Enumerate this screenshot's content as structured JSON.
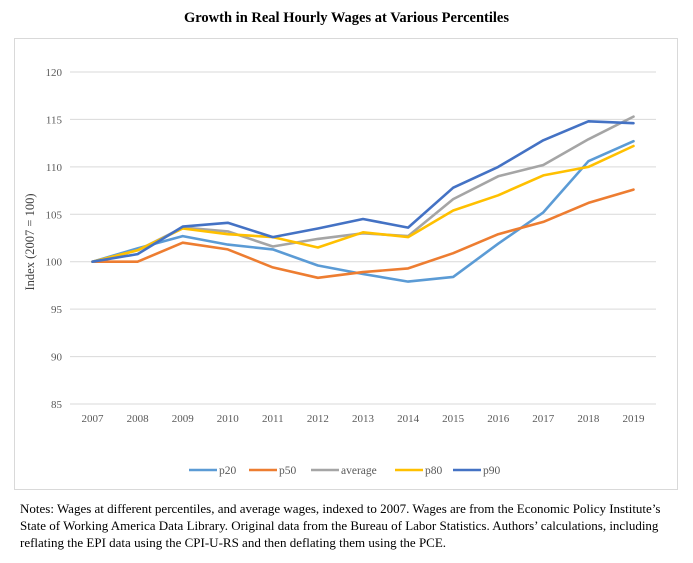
{
  "title": "Growth in Real Hourly Wages at Various Percentiles",
  "notes": "Notes: Wages at different percentiles, and average wages, indexed to 2007. Wages are from the Economic Policy Institute’s State of Working America Data Library. Original data from the Bureau of Labor Statistics. Authors’ calculations, including reflating the EPI data using the CPI-U-RS and then deflating them using the PCE.",
  "chart_data": {
    "type": "line",
    "title": "Growth in Real Hourly Wages at Various Percentiles",
    "xlabel": "",
    "ylabel": "Index (2007 = 100)",
    "ylim": [
      85,
      120
    ],
    "yticks": [
      85,
      90,
      95,
      100,
      105,
      110,
      115,
      120
    ],
    "grid": true,
    "legend_position": "bottom",
    "x": [
      "2007",
      "2008",
      "2009",
      "2010",
      "2011",
      "2012",
      "2013",
      "2014",
      "2015",
      "2016",
      "2017",
      "2018",
      "2019"
    ],
    "series": [
      {
        "name": "p20",
        "color": "#5B9BD5",
        "values": [
          100.0,
          101.4,
          102.7,
          101.8,
          101.3,
          99.6,
          98.7,
          97.9,
          98.4,
          101.9,
          105.2,
          110.6,
          112.7
        ]
      },
      {
        "name": "p50",
        "color": "#ED7D31",
        "values": [
          100.0,
          100.0,
          102.0,
          101.3,
          99.4,
          98.3,
          98.9,
          99.3,
          100.9,
          102.9,
          104.2,
          106.2,
          107.6
        ]
      },
      {
        "name": "average",
        "color": "#A5A5A5",
        "values": [
          100.0,
          101.2,
          103.6,
          103.2,
          101.6,
          102.4,
          103.0,
          102.7,
          106.6,
          109.0,
          110.2,
          112.9,
          115.3
        ]
      },
      {
        "name": "p80",
        "color": "#FFC000",
        "values": [
          100.0,
          101.2,
          103.5,
          102.9,
          102.6,
          101.5,
          103.1,
          102.6,
          105.4,
          107.0,
          109.1,
          110.0,
          112.2
        ]
      },
      {
        "name": "p90",
        "color": "#4472C4",
        "values": [
          100.0,
          100.8,
          103.7,
          104.1,
          102.6,
          103.5,
          104.5,
          103.6,
          107.8,
          110.0,
          112.8,
          114.8,
          114.6
        ]
      }
    ]
  }
}
